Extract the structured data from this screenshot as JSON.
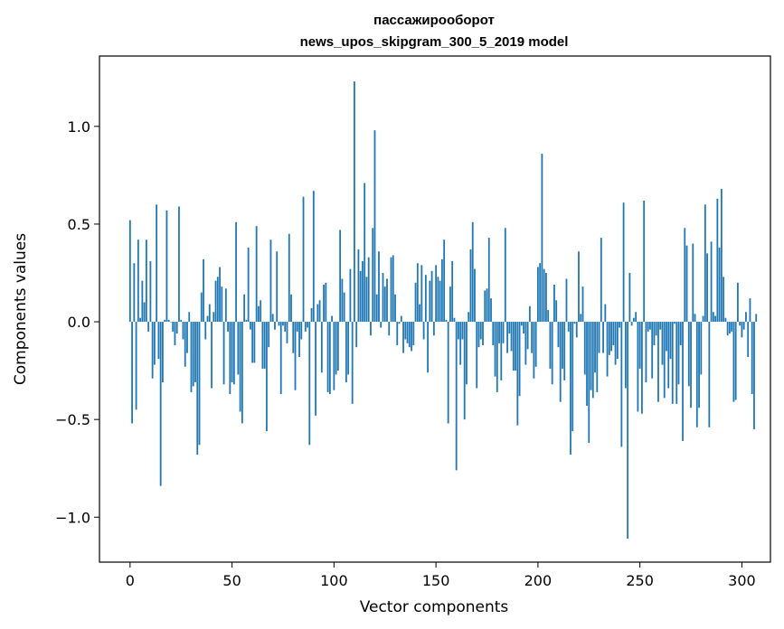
{
  "chart_data": {
    "type": "bar",
    "title_line1": "пассажирооборот",
    "title_line2": "news_upos_skipgram_300_5_2019 model",
    "xlabel": "Vector components",
    "ylabel": "Components values",
    "xlim": [
      -15,
      314
    ],
    "ylim": [
      -1.23,
      1.36
    ],
    "xticks": [
      0,
      50,
      100,
      150,
      200,
      250,
      300
    ],
    "xtick_labels": [
      "0",
      "50",
      "100",
      "150",
      "200",
      "250",
      "300"
    ],
    "yticks": [
      -1.0,
      -0.5,
      0.0,
      0.5,
      1.0
    ],
    "ytick_labels": [
      "−1.0",
      "−0.5",
      "0.0",
      "0.5",
      "1.0"
    ],
    "bar_color": "#1f77b4",
    "grid": false,
    "values": [
      0.52,
      -0.52,
      0.3,
      -0.45,
      0.42,
      0.02,
      0.21,
      0.1,
      0.42,
      -0.05,
      0.31,
      -0.29,
      -0.22,
      0.6,
      -0.19,
      -0.84,
      -0.31,
      0.01,
      0.57,
      0.01,
      0.0,
      -0.05,
      -0.12,
      -0.06,
      0.59,
      0.01,
      -0.09,
      -0.23,
      -0.16,
      0.05,
      -0.36,
      -0.33,
      -0.31,
      -0.68,
      -0.63,
      0.15,
      0.32,
      -0.09,
      0.03,
      0.09,
      -0.34,
      0.05,
      0.21,
      0.23,
      0.28,
      0.18,
      -0.32,
      0.17,
      -0.05,
      -0.37,
      -0.31,
      -0.32,
      0.51,
      -0.27,
      -0.46,
      -0.52,
      0.14,
      0.01,
      0.38,
      -0.04,
      -0.21,
      -0.21,
      0.49,
      0.08,
      0.11,
      -0.24,
      -0.24,
      -0.56,
      -0.13,
      0.42,
      0.04,
      -0.04,
      0.36,
      -0.02,
      -0.37,
      -0.02,
      -0.05,
      -0.11,
      0.45,
      0.14,
      -0.16,
      -0.35,
      -0.05,
      -0.18,
      -0.09,
      0.64,
      -0.05,
      -0.03,
      -0.63,
      0.07,
      0.67,
      -0.48,
      0.09,
      0.11,
      -0.26,
      0.19,
      0.2,
      -0.36,
      -0.37,
      0.03,
      -0.35,
      -0.27,
      -0.25,
      0.47,
      0.22,
      0.15,
      -0.31,
      -0.27,
      0.27,
      -0.42,
      1.23,
      -0.13,
      0.37,
      0.26,
      0.31,
      0.71,
      0.23,
      0.33,
      -0.07,
      0.48,
      0.98,
      0.14,
      0.36,
      -0.03,
      0.25,
      0.18,
      0.22,
      -0.07,
      0.33,
      0.34,
      0.14,
      -0.12,
      -0.01,
      0.03,
      -0.16,
      -0.09,
      -0.11,
      -0.13,
      -0.15,
      -0.12,
      0.2,
      0.3,
      0.09,
      0.29,
      -0.09,
      0.24,
      -0.26,
      0.21,
      0.26,
      -0.07,
      0.29,
      0.23,
      0.21,
      0.32,
      0.42,
      0.01,
      -0.52,
      0.18,
      0.31,
      0.02,
      -0.76,
      -0.09,
      -0.22,
      -0.09,
      -0.5,
      -0.32,
      0.05,
      0.37,
      0.51,
      0.27,
      -0.34,
      -0.13,
      -0.09,
      -0.12,
      0.16,
      0.17,
      0.43,
      0.12,
      -0.12,
      -0.28,
      -0.36,
      -0.11,
      -0.3,
      -0.11,
      0.48,
      -0.16,
      -0.06,
      -0.15,
      -0.25,
      -0.25,
      -0.53,
      -0.38,
      -0.02,
      -0.06,
      -0.22,
      -0.14,
      0.08,
      -0.16,
      -0.29,
      -0.23,
      0.28,
      0.3,
      0.86,
      0.27,
      0.25,
      0.06,
      -0.24,
      -0.32,
      0.19,
      0.11,
      -0.13,
      -0.41,
      -0.24,
      -0.3,
      0.22,
      -0.05,
      -0.68,
      -0.56,
      -0.01,
      -0.08,
      0.36,
      0.04,
      0.18,
      -0.27,
      -0.43,
      -0.62,
      -0.35,
      -0.39,
      -0.26,
      -0.36,
      -0.16,
      0.43,
      -0.16,
      0.09,
      -0.28,
      -0.17,
      -0.15,
      -0.12,
      -0.22,
      -0.19,
      -0.03,
      -0.64,
      0.61,
      -0.34,
      -1.11,
      0.25,
      -0.02,
      0.02,
      0.05,
      -0.46,
      -0.24,
      -0.47,
      0.62,
      -0.31,
      -0.05,
      -0.04,
      -0.29,
      -0.12,
      -0.07,
      -0.41,
      -0.04,
      -0.22,
      -0.39,
      -0.15,
      -0.34,
      -0.19,
      -0.42,
      -0.01,
      -0.42,
      -0.32,
      -0.12,
      -0.61,
      0.48,
      0.39,
      -0.33,
      -0.44,
      0.4,
      0.04,
      -0.54,
      -0.44,
      -0.27,
      0.03,
      0.6,
      0.35,
      -0.54,
      0.41,
      0.05,
      0.03,
      0.63,
      0.38,
      0.68,
      0.23,
      0.02,
      -0.07,
      -0.06,
      -0.05,
      -0.41,
      -0.4,
      0.2,
      -0.02,
      -0.08,
      -0.04,
      0.05,
      -0.18,
      0.12,
      -0.37,
      -0.55,
      0.04
    ]
  }
}
